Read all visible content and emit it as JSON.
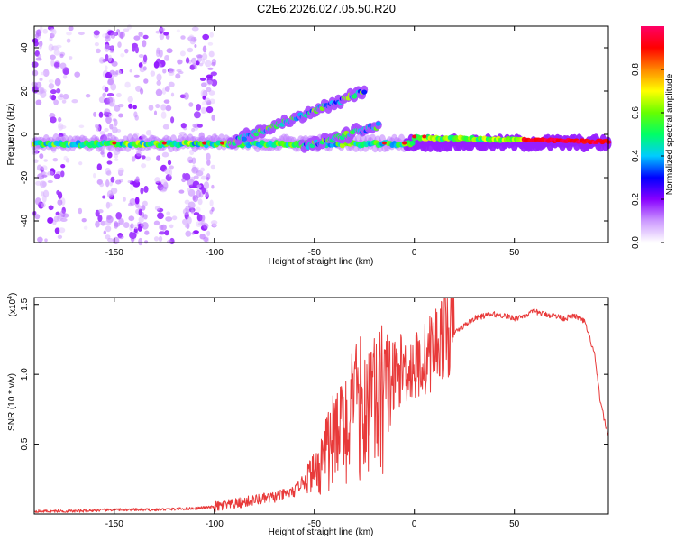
{
  "title": "C2E6.2026.027.05.50.R20",
  "chart_data": [
    {
      "type": "heatmap",
      "name": "spectrogram",
      "xlabel": "Height of straight line (km)",
      "ylabel": "Frequency (Hz)",
      "xlim": [
        -190,
        97
      ],
      "ylim": [
        -50,
        50
      ],
      "xticks": [
        -150,
        -100,
        -50,
        0,
        50
      ],
      "xtick_labels": [
        "-150",
        "-100",
        "-50",
        "0",
        "50"
      ],
      "yticks": [
        -40,
        -20,
        0,
        20,
        40
      ],
      "ytick_labels": [
        "-40",
        "-20",
        "0",
        "20",
        "40"
      ],
      "colorbar": {
        "label": "Normalized spectral amplitude",
        "range": [
          0,
          1
        ],
        "ticks": [
          0.0,
          0.2,
          0.4,
          0.6,
          0.8
        ],
        "tick_labels": [
          "0.0",
          "0.2",
          "0.4",
          "0.6",
          "0.8"
        ],
        "colors": [
          "#ffffff",
          "#cc99ff",
          "#8800ff",
          "#0000ff",
          "#00ccff",
          "#00ff66",
          "#66ff00",
          "#ffff00",
          "#ff8800",
          "#ff0000",
          "#ff0066"
        ]
      },
      "features": [
        {
          "name": "main-band",
          "x": [
            -190,
            97
          ],
          "freq": -4,
          "amplitude": "0.3-1.0"
        },
        {
          "name": "upper-branch",
          "x": [
            -90,
            -25
          ],
          "freq": [
            -4,
            22
          ],
          "amplitude": "0.2-0.6"
        },
        {
          "name": "lower-branch",
          "x": [
            -55,
            -20
          ],
          "freq": [
            -4,
            4
          ],
          "amplitude": "0.3-0.6"
        },
        {
          "name": "scattered-noise",
          "x": [
            -190,
            -100
          ],
          "freq": [
            -50,
            50
          ],
          "amplitude": "0.0-0.2"
        }
      ]
    },
    {
      "type": "line",
      "name": "snr",
      "xlabel": "Height of straight line (km)",
      "ylabel": "SNR (10 * v/v)",
      "scale_label": "(x10",
      "scale_exponent": "4",
      "scale_suffix": ")",
      "xlim": [
        -190,
        97
      ],
      "ylim": [
        0,
        1.55
      ],
      "xticks": [
        -150,
        -100,
        -50,
        0,
        50
      ],
      "xtick_labels": [
        "-150",
        "-100",
        "-50",
        "0",
        "50"
      ],
      "yticks": [
        0.5,
        1.0,
        1.5
      ],
      "ytick_labels": [
        "0.5",
        "1.0",
        "1.5"
      ],
      "color": "#e83a3a",
      "series": [
        {
          "name": "SNR",
          "x": [
            -190,
            -170,
            -150,
            -130,
            -110,
            -100,
            -90,
            -80,
            -70,
            -60,
            -55,
            -50,
            -45,
            -40,
            -35,
            -30,
            -25,
            -20,
            -15,
            -10,
            -5,
            0,
            5,
            10,
            15,
            20,
            25,
            30,
            35,
            40,
            45,
            50,
            55,
            60,
            65,
            70,
            75,
            80,
            85,
            90,
            93,
            97
          ],
          "y": [
            0.02,
            0.02,
            0.03,
            0.03,
            0.04,
            0.05,
            0.07,
            0.1,
            0.12,
            0.16,
            0.25,
            0.3,
            0.45,
            0.55,
            0.65,
            0.75,
            0.85,
            0.8,
            0.9,
            1.0,
            1.05,
            1.05,
            1.1,
            1.2,
            1.3,
            1.3,
            1.35,
            1.4,
            1.42,
            1.43,
            1.42,
            1.4,
            1.42,
            1.45,
            1.43,
            1.42,
            1.4,
            1.42,
            1.38,
            1.15,
            0.8,
            0.55
          ]
        }
      ]
    }
  ]
}
